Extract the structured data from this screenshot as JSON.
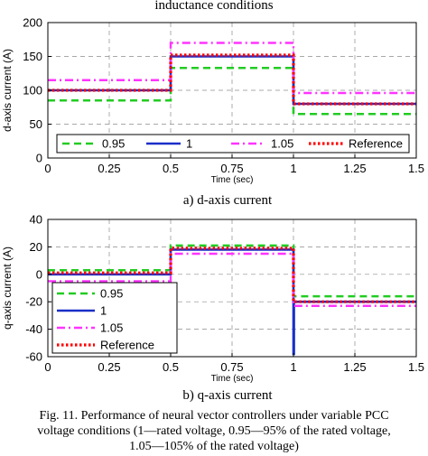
{
  "page": {
    "top_text": "inductance conditions",
    "caption_lines": [
      "Fig. 11. Performance of neural vector controllers under variable PCC",
      "voltage conditions (1—rated voltage, 0.95—95% of the rated voltage,",
      "1.05—105% of the rated voltage)"
    ]
  },
  "chart_data": [
    {
      "type": "line",
      "caption": "a) d-axis current",
      "xlabel": "Time (sec)",
      "ylabel": "d-axis current (A)",
      "xlim": [
        0,
        1.5
      ],
      "ylim": [
        0,
        200
      ],
      "xticks": [
        0,
        0.25,
        0.5,
        0.75,
        1,
        1.25,
        1.5
      ],
      "xtick_labels": [
        "0",
        "0.25",
        "0.5",
        "0.75",
        "1",
        "1.25",
        "1.5"
      ],
      "yticks": [
        0,
        50,
        100,
        150,
        200
      ],
      "ytick_labels": [
        "0",
        "50",
        "100",
        "150",
        "200"
      ],
      "grid": true,
      "legend": {
        "placement": "bottom, horizontal",
        "entries": [
          "0.95",
          "1",
          "1.05",
          "Reference"
        ]
      },
      "series": [
        {
          "name": "0.95",
          "color": "#22cc22",
          "style": "dashed",
          "x": [
            0,
            0.5,
            0.5,
            1,
            1,
            1.5
          ],
          "y": [
            85,
            85,
            133,
            133,
            65,
            65
          ]
        },
        {
          "name": "1",
          "color": "#1a2fc8",
          "style": "solid",
          "x": [
            0,
            0.5,
            0.5,
            1,
            1,
            1.5
          ],
          "y": [
            100,
            100,
            150,
            150,
            80,
            80
          ]
        },
        {
          "name": "1.05",
          "color": "#ff33ff",
          "style": "dashdot",
          "x": [
            0,
            0.5,
            0.5,
            1,
            1,
            1.5
          ],
          "y": [
            115,
            115,
            170,
            170,
            96,
            96
          ]
        },
        {
          "name": "Reference",
          "color": "#ff0000",
          "style": "dotted",
          "x": [
            0,
            0.5,
            0.5,
            1,
            1,
            1.5
          ],
          "y": [
            100,
            100,
            152,
            152,
            80,
            80
          ]
        }
      ]
    },
    {
      "type": "line",
      "caption": "b) q-axis current",
      "xlabel": "Time (sec)",
      "ylabel": "q-axis current (A)",
      "xlim": [
        0,
        1.5
      ],
      "ylim": [
        -60,
        40
      ],
      "xticks": [
        0,
        0.25,
        0.5,
        0.75,
        1,
        1.25,
        1.5
      ],
      "xtick_labels": [
        "0",
        "0.25",
        "0.5",
        "0.75",
        "1",
        "1.25",
        "1.5"
      ],
      "yticks": [
        -60,
        -40,
        -20,
        0,
        20,
        40
      ],
      "ytick_labels": [
        "-60",
        "-40",
        "-20",
        "0",
        "20",
        "40"
      ],
      "grid": true,
      "legend": {
        "placement": "bottom-left, vertical",
        "entries": [
          "0.95",
          "1",
          "1.05",
          "Reference"
        ]
      },
      "series": [
        {
          "name": "0.95",
          "color": "#22cc22",
          "style": "dashed",
          "x": [
            0,
            0.5,
            0.5,
            1,
            1,
            1.5
          ],
          "y": [
            3,
            3,
            21,
            21,
            -16,
            -16
          ]
        },
        {
          "name": "1",
          "color": "#1a2fc8",
          "style": "solid",
          "x": [
            0,
            0.5,
            0.5,
            1,
            1,
            1.002,
            1.002,
            1.5
          ],
          "y": [
            0,
            0,
            18,
            18,
            -58,
            -58,
            -20,
            -20
          ]
        },
        {
          "name": "1.05",
          "color": "#ff33ff",
          "style": "dashdot",
          "x": [
            0,
            0.5,
            0.5,
            1,
            1,
            1.5
          ],
          "y": [
            -5,
            -5,
            15,
            15,
            -23,
            -23
          ]
        },
        {
          "name": "Reference",
          "color": "#ff0000",
          "style": "dotted",
          "x": [
            0,
            0.5,
            0.5,
            1,
            1,
            1.5
          ],
          "y": [
            1,
            1,
            19,
            19,
            -20,
            -20
          ]
        }
      ]
    }
  ]
}
